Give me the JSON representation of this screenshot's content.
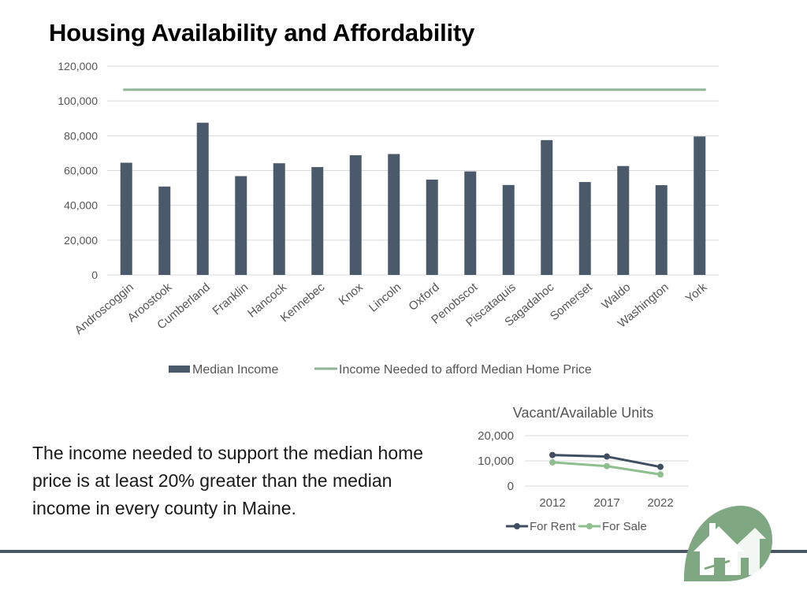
{
  "slide": {
    "title": "Housing Availability and Affordability",
    "body": "The income needed to support the median home price is at least 20% greater than the median income in every county in Maine."
  },
  "colors": {
    "bar": "#4a5a6b",
    "income_needed_line": "#8fb596",
    "for_rent": "#3f4f61",
    "for_sale": "#8fbf8f",
    "grid": "#d9d9d9",
    "axis_text": "#555555",
    "logo_green": "#7fa882"
  },
  "chart_data": [
    {
      "type": "bar",
      "title": "",
      "categories": [
        "Androscoggin",
        "Aroostook",
        "Cumberland",
        "Franklin",
        "Hancock",
        "Kennebec",
        "Knox",
        "Lincoln",
        "Oxford",
        "Penobscot",
        "Piscataquis",
        "Sagadahoc",
        "Somerset",
        "Waldo",
        "Washington",
        "York"
      ],
      "series": [
        {
          "name": "Median Income",
          "type": "bar",
          "values": [
            64500,
            50800,
            87500,
            56800,
            64200,
            62000,
            68800,
            69500,
            54800,
            59500,
            51700,
            77500,
            53400,
            62600,
            51600,
            79600
          ]
        },
        {
          "name": "Income Needed to afford Median Home Price",
          "type": "line",
          "values": [
            106500,
            106500,
            106500,
            106500,
            106500,
            106500,
            106500,
            106500,
            106500,
            106500,
            106500,
            106500,
            106500,
            106500,
            106500,
            106500
          ]
        }
      ],
      "ylim": [
        0,
        120000
      ],
      "yticks": [
        "0",
        "20,000",
        "40,000",
        "60,000",
        "80,000",
        "100,000",
        "120,000"
      ],
      "grid": true,
      "legend": "bottom"
    },
    {
      "type": "line",
      "title": "Vacant/Available Units",
      "categories": [
        "2012",
        "2017",
        "2022"
      ],
      "series": [
        {
          "name": "For Rent",
          "values": [
            12300,
            11700,
            7600
          ]
        },
        {
          "name": "For Sale",
          "values": [
            9400,
            7900,
            4600
          ]
        }
      ],
      "ylim": [
        0,
        20000
      ],
      "yticks": [
        "0",
        "10,000",
        "20,000"
      ],
      "grid": true,
      "legend": "bottom"
    }
  ],
  "logo": {
    "icon": "house-leaf-logo-icon"
  }
}
